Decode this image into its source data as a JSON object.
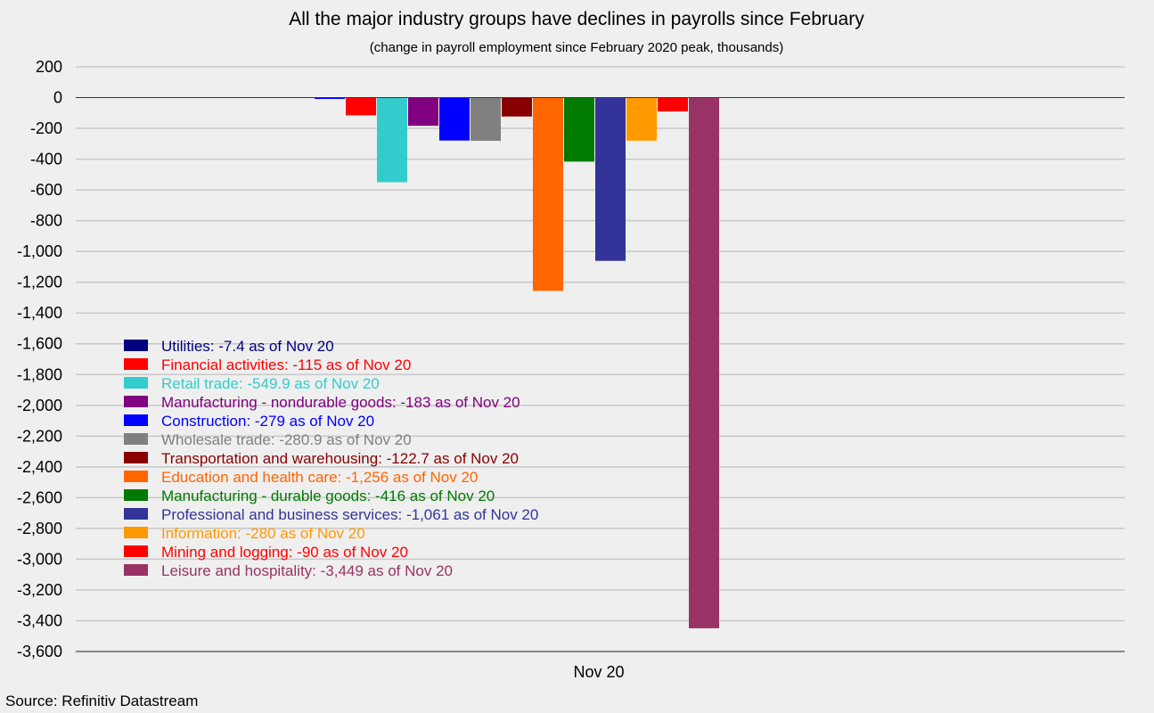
{
  "chart_data": {
    "type": "bar",
    "title": "All the major industry groups have declines in payrolls since February",
    "subtitle": "(change in payroll employment since February 2020 peak, thousands)",
    "source": "Source: Refinitiv Datastream",
    "xlabel": "",
    "ylabel": "",
    "categories": [
      "Nov 20"
    ],
    "ylim": [
      -3600,
      200
    ],
    "ytick_step": 200,
    "yticks": [
      "200",
      "0",
      "-200",
      "-400",
      "-600",
      "-800",
      "-1,000",
      "-1,200",
      "-1,400",
      "-1,600",
      "-1,800",
      "-2,000",
      "-2,200",
      "-2,400",
      "-2,600",
      "-2,800",
      "-3,000",
      "-3,200",
      "-3,400",
      "-3,600"
    ],
    "grid": true,
    "legend_position": "left-middle",
    "series": [
      {
        "name": "Utilities",
        "value": -7.4,
        "label": "Utilities: -7.4 as of Nov 20",
        "color": "#000080",
        "bar_color": "#0000ff"
      },
      {
        "name": "Financial activities",
        "value": -115,
        "label": "Financial activities: -115 as of Nov 20",
        "color": "#ff0000"
      },
      {
        "name": "Retail trade",
        "value": -549.9,
        "label": "Retail trade: -549.9 as of Nov 20",
        "color": "#33cccc"
      },
      {
        "name": "Manufacturing - nondurable goods",
        "value": -183,
        "label": "Manufacturing - nondurable goods: -183 as of Nov 20",
        "color": "#800080"
      },
      {
        "name": "Construction",
        "value": -279,
        "label": "Construction: -279 as of Nov 20",
        "color": "#0000ff"
      },
      {
        "name": "Wholesale trade",
        "value": -280.9,
        "label": "Wholesale trade: -280.9 as of Nov 20",
        "color": "#808080"
      },
      {
        "name": "Transportation and warehousing",
        "value": -122.7,
        "label": "Transportation and warehousing: -122.7 as of Nov 20",
        "color": "#880000"
      },
      {
        "name": "Education and health care",
        "value": -1256,
        "label": "Education and health care: -1,256 as of Nov 20",
        "color": "#ff6600"
      },
      {
        "name": "Manufacturing - durable goods",
        "value": -416,
        "label": "Manufacturing - durable goods: -416 as of Nov 20",
        "color": "#007a00"
      },
      {
        "name": "Professional and business services",
        "value": -1061,
        "label": "Professional and business services: -1,061 as of Nov 20",
        "color": "#333399"
      },
      {
        "name": "Information",
        "value": -280,
        "label": "Information: -280 as of Nov 20",
        "color": "#ff9900"
      },
      {
        "name": "Mining and logging",
        "value": -90,
        "label": "Mining and logging: -90 as of Nov 20",
        "color": "#ff0000"
      },
      {
        "name": "Leisure and hospitality",
        "value": -3449,
        "label": "Leisure and hospitality: -3,449 as of Nov 20",
        "color": "#993366"
      }
    ]
  }
}
